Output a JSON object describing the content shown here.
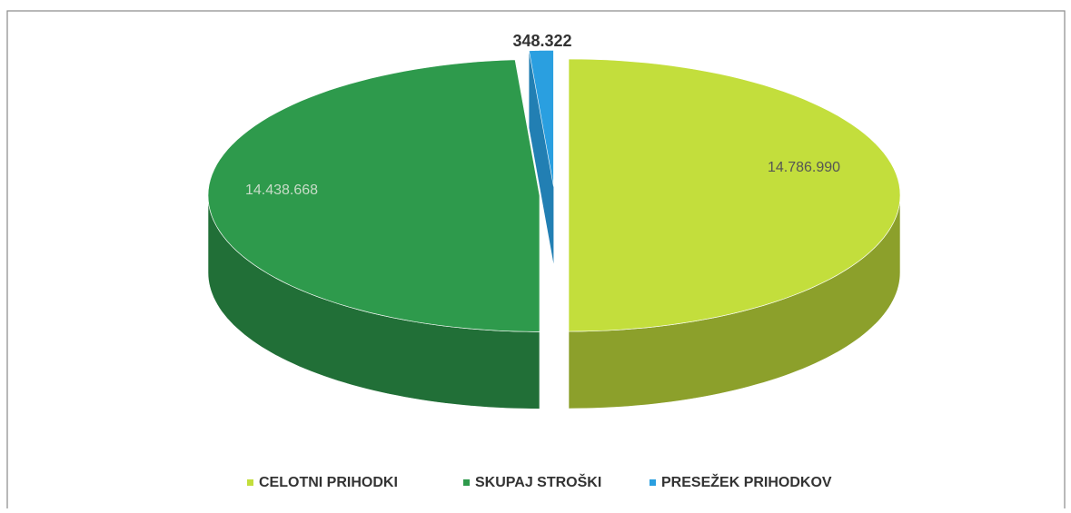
{
  "chart_data": {
    "type": "pie3d",
    "categories": [
      "CELOTNI PRIHODKI",
      "SKUPAJ STROŠKI",
      "PRESEŽEK PRIHODKOV"
    ],
    "values": [
      14786990,
      14438668,
      348322
    ],
    "value_labels": [
      "14.786.990",
      "14.438.668",
      "348.322"
    ],
    "colors": [
      "#c3de3c",
      "#2e9a4c",
      "#2a9fe0"
    ],
    "legend": "bottom"
  }
}
